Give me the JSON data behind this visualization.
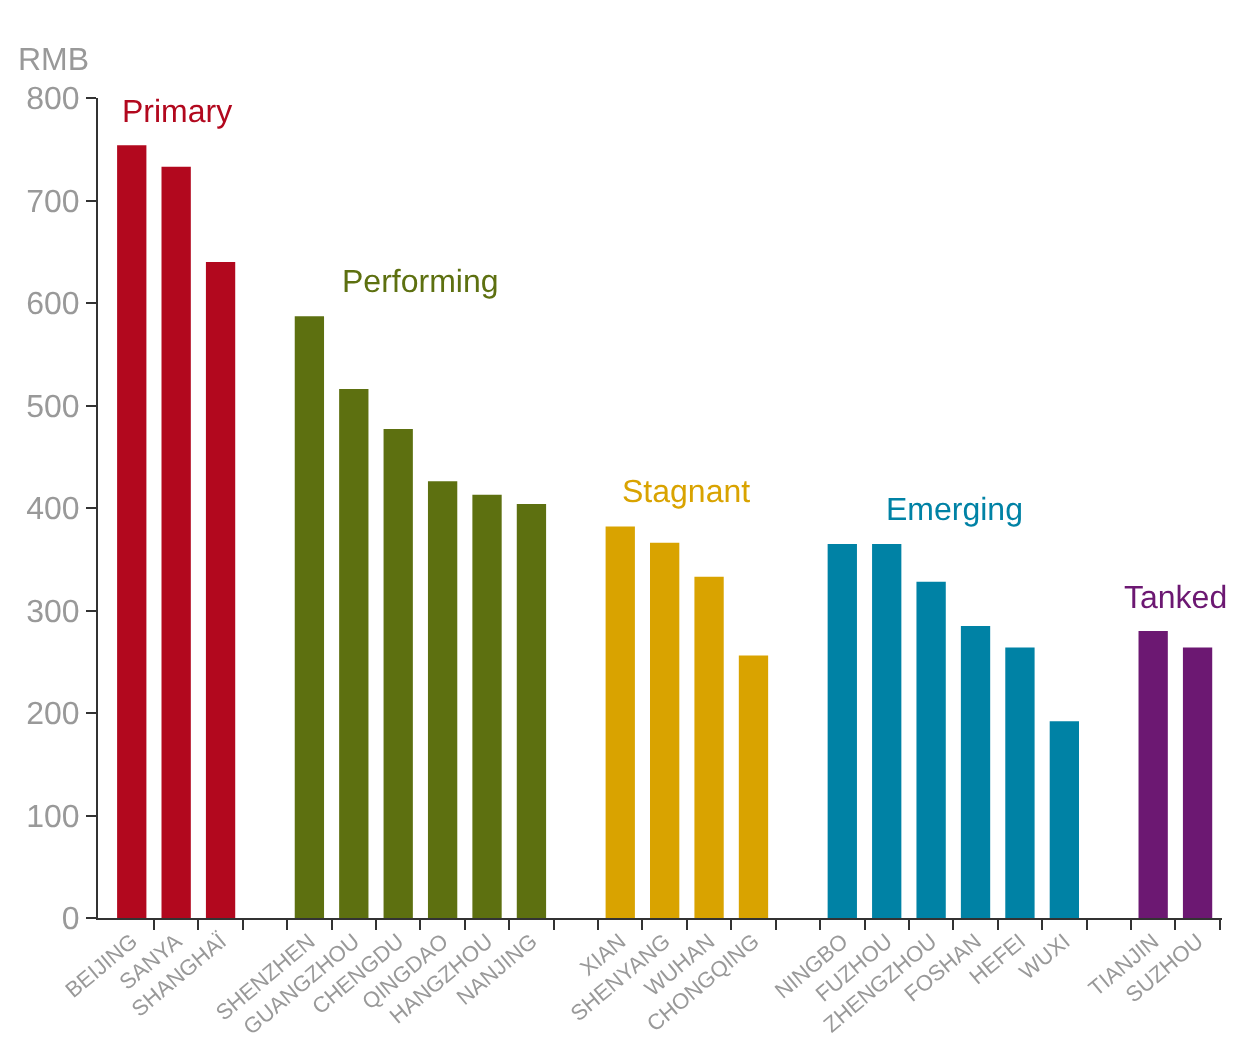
{
  "chart_data": {
    "type": "bar",
    "ylabel": "RMB",
    "categories": [
      "BEIJING",
      "SANYA",
      "SHANGHAÏ",
      null,
      "SHENZHEN",
      "GUANGZHOU",
      "CHENGDU",
      "QINGDAO",
      "HANGZHOU",
      "NANJING",
      null,
      "XIAN",
      "SHENYANG",
      "WUHAN",
      "CHONGQING",
      null,
      "NINGBO",
      "FUZHOU",
      "ZHENGZHOU",
      "FOSHAN",
      "HEFEI",
      "WUXI",
      null,
      "TIANJIN",
      "SUZHOU"
    ],
    "series": [
      {
        "name": "Primary",
        "color": "#b2081e",
        "values": [
          754,
          733,
          640,
          null,
          null,
          null,
          null,
          null,
          null,
          null,
          null,
          null,
          null,
          null,
          null,
          null,
          null,
          null,
          null,
          null,
          null,
          null,
          null,
          null,
          null
        ]
      },
      {
        "name": "Performing",
        "color": "#5d7010",
        "values": [
          null,
          null,
          null,
          null,
          587,
          516,
          477,
          426,
          413,
          404,
          null,
          null,
          null,
          null,
          null,
          null,
          null,
          null,
          null,
          null,
          null,
          null,
          null,
          null,
          null
        ]
      },
      {
        "name": "Stagnant",
        "color": "#d9a300",
        "values": [
          null,
          null,
          null,
          null,
          null,
          null,
          null,
          null,
          null,
          null,
          null,
          382,
          366,
          333,
          256,
          null,
          null,
          null,
          null,
          null,
          null,
          null,
          null,
          null,
          null
        ]
      },
      {
        "name": "Emerging",
        "color": "#0082a5",
        "values": [
          null,
          null,
          null,
          null,
          null,
          null,
          null,
          null,
          null,
          null,
          null,
          null,
          null,
          null,
          null,
          null,
          365,
          365,
          328,
          285,
          264,
          192,
          null,
          null,
          null
        ]
      },
      {
        "name": "Tanked",
        "color": "#6c1872",
        "values": [
          null,
          null,
          null,
          null,
          null,
          null,
          null,
          null,
          null,
          null,
          null,
          null,
          null,
          null,
          null,
          null,
          null,
          null,
          null,
          null,
          null,
          null,
          null,
          280,
          264
        ]
      }
    ],
    "ylim": [
      0,
      800
    ],
    "yticks": [
      0,
      100,
      200,
      300,
      400,
      500,
      600,
      700,
      800
    ],
    "grid": false,
    "legend": false
  }
}
